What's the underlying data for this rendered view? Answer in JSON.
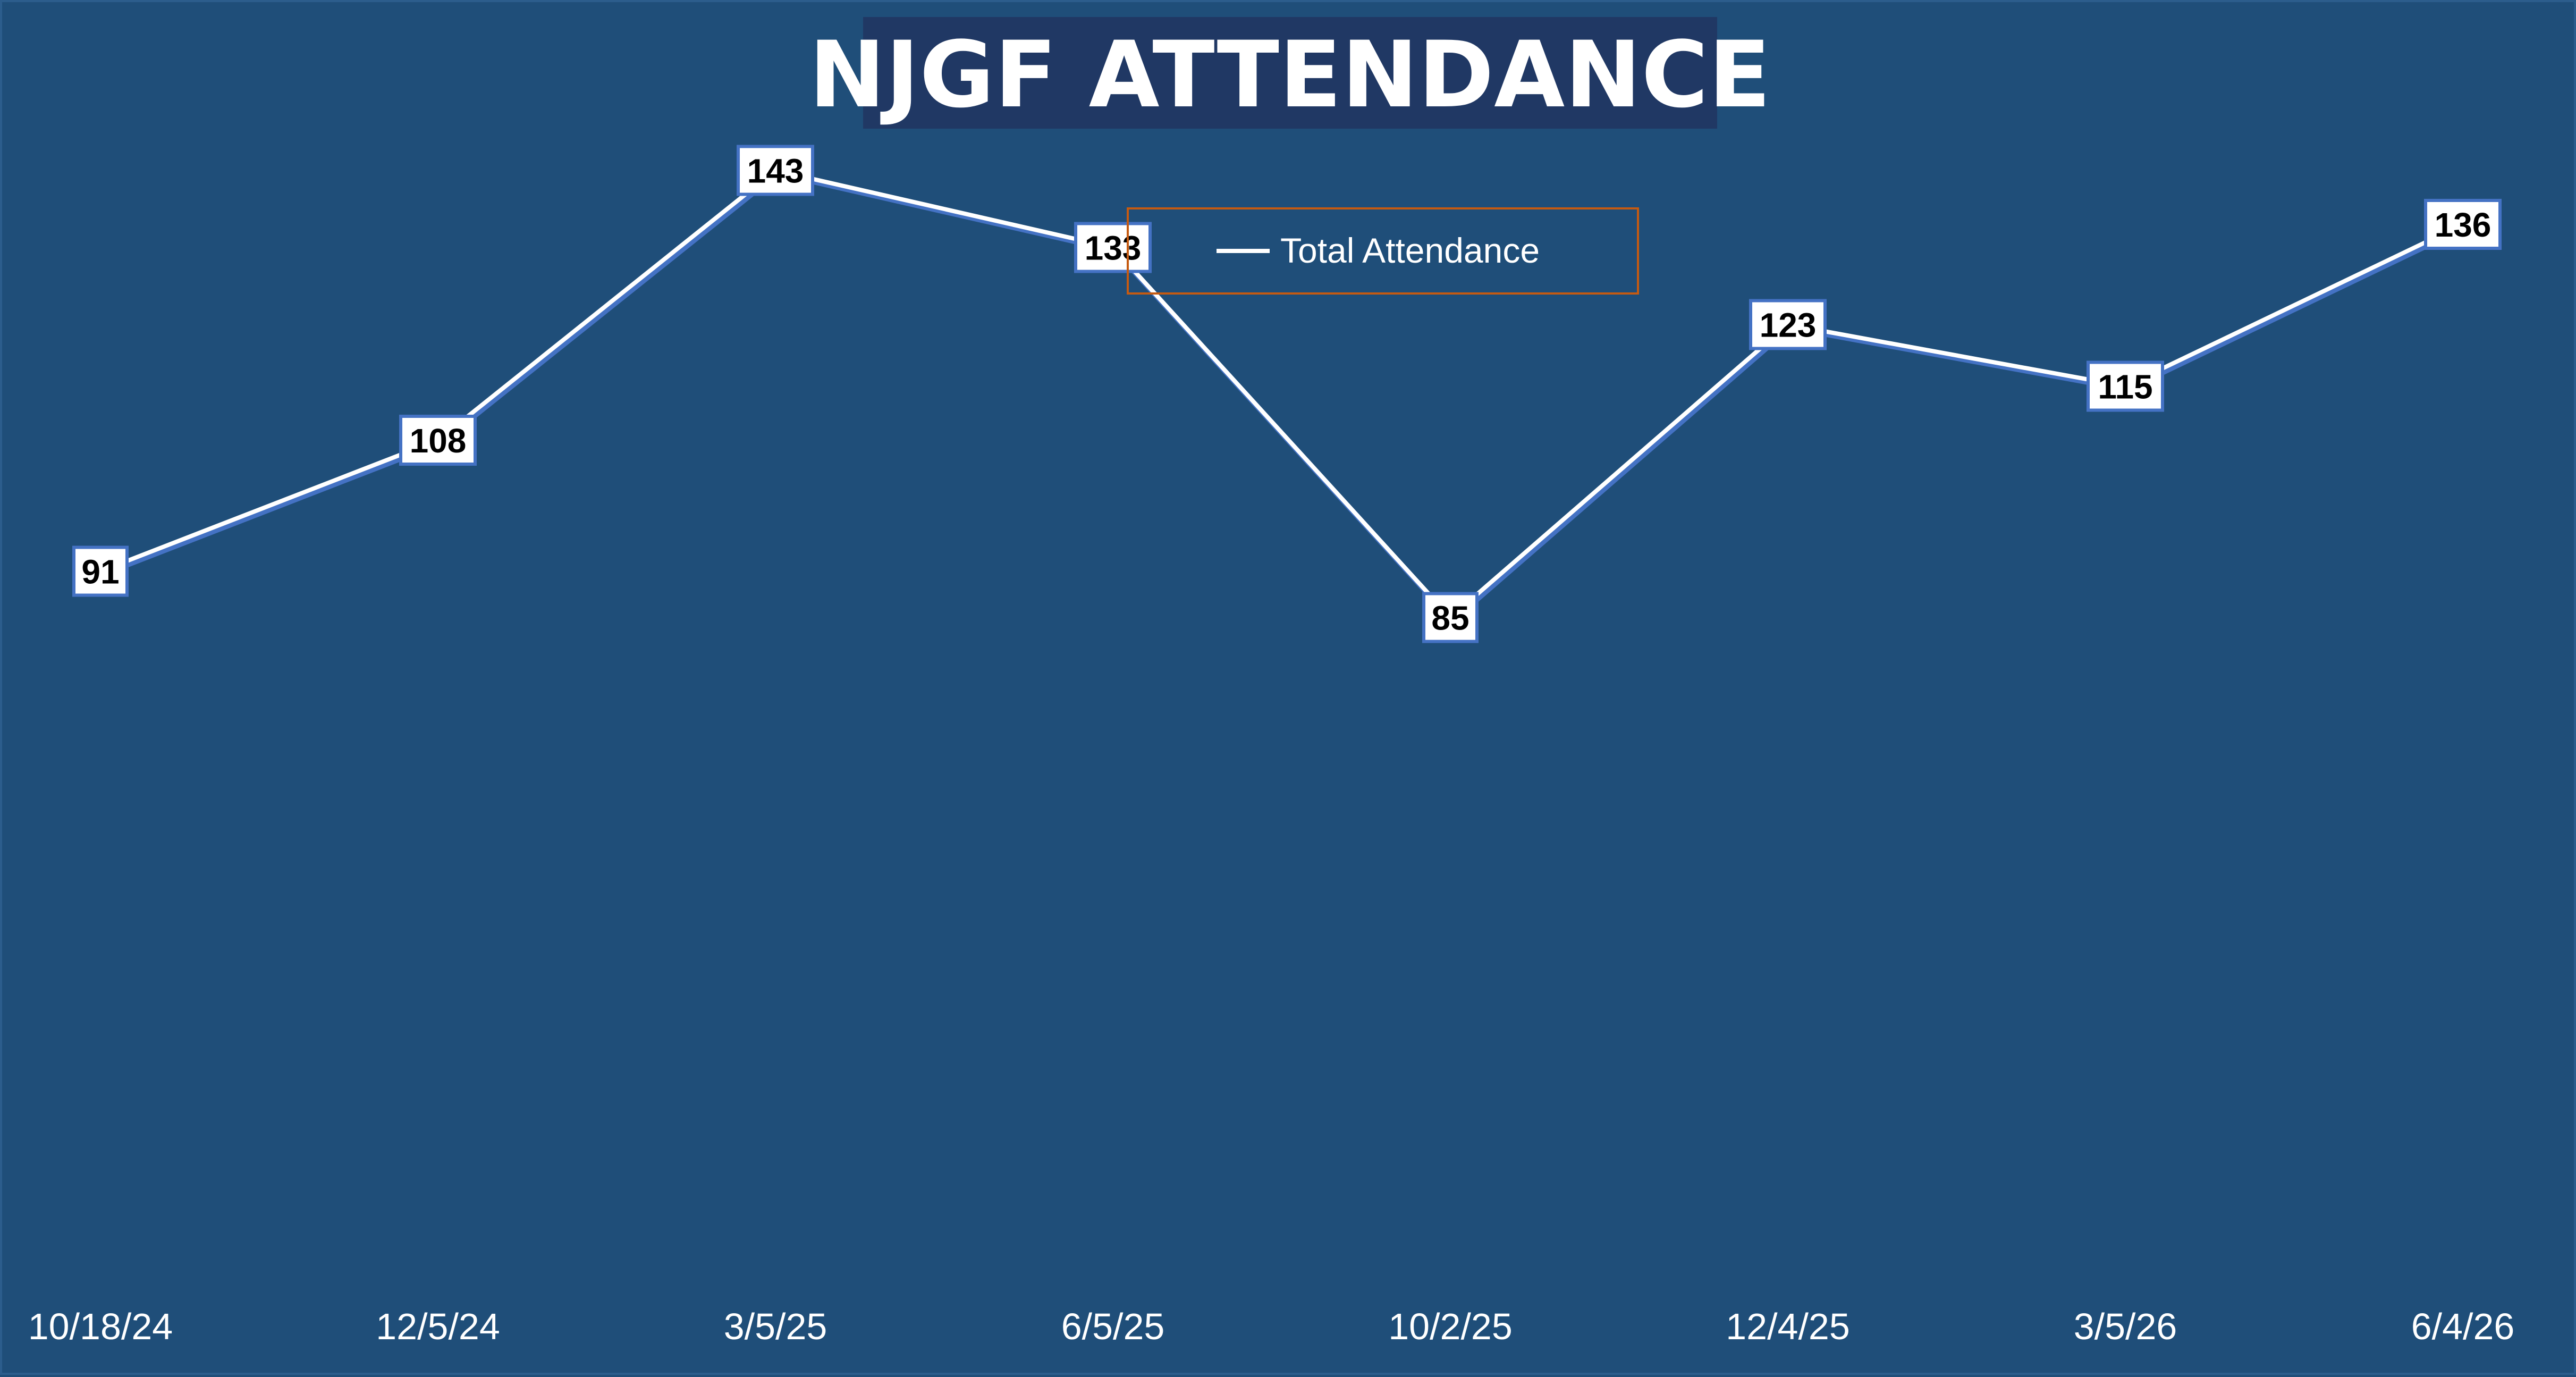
{
  "chart_data": {
    "type": "line",
    "title": "NJGF ATTENDANCE",
    "categories": [
      "10/18/24",
      "12/5/24",
      "3/5/25",
      "6/5/25",
      "10/2/25",
      "12/4/25",
      "3/5/26",
      "6/4/26"
    ],
    "series": [
      {
        "name": "Total Attendance",
        "values": [
          91,
          108,
          143,
          133,
          85,
          123,
          115,
          136
        ]
      }
    ],
    "xlabel": "",
    "ylabel": "",
    "ylim": [
      0,
      160
    ],
    "grid": false,
    "data_labels": true,
    "drop_lines": true,
    "legend_position": "top-center",
    "colors": {
      "background": "#1f4e79",
      "title_box": "#203864",
      "line": "#ffffff",
      "line_shadow": "#4472c4",
      "label_border": "#4472c4",
      "legend_border": "#c55a11"
    }
  }
}
